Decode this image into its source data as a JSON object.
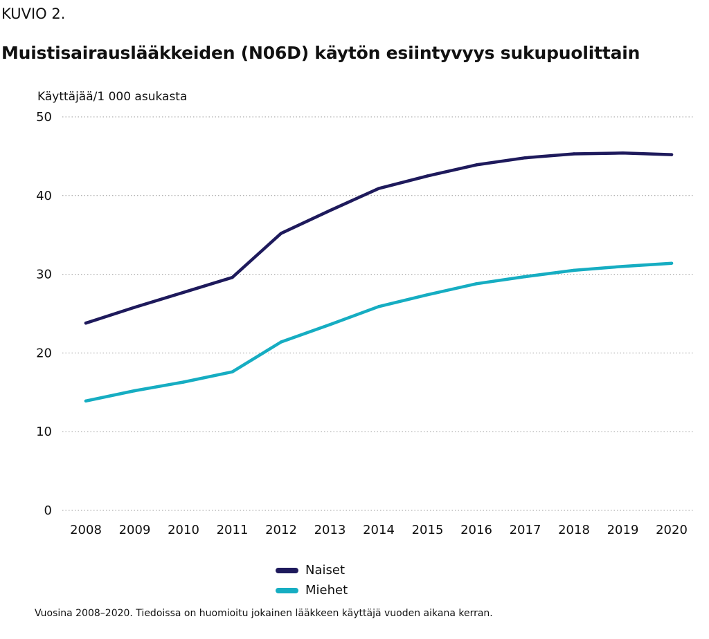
{
  "figure_label": "KUVIO 2.",
  "title": "Muistisairauslääkkeiden (N06D) käytön esiintyvyys sukupuolittain",
  "footnote": "Vuosina 2008–2020. Tiedoissa on huomioitu jokainen lääkkeen käyttäjä vuoden aikana kerran.",
  "chart_data": {
    "type": "line",
    "title": "Muistisairauslääkkeiden (N06D) käytön esiintyvyys sukupuolittain",
    "ylabel": "Käyttäjää/1 000 asukasta",
    "xlabel": "",
    "x": [
      "2008",
      "2009",
      "2010",
      "2011",
      "2012",
      "2013",
      "2014",
      "2015",
      "2016",
      "2017",
      "2018",
      "2019",
      "2020"
    ],
    "ylim": [
      0,
      50
    ],
    "yticks": [
      0,
      10,
      20,
      30,
      40,
      50
    ],
    "grid": "horizontal dotted",
    "legend_position": "bottom-center",
    "series": [
      {
        "name": "Naiset",
        "color": "#1e1a5c",
        "values": [
          23.8,
          25.8,
          27.7,
          29.6,
          35.2,
          38.1,
          40.9,
          42.5,
          43.9,
          44.8,
          45.3,
          45.4,
          45.2
        ]
      },
      {
        "name": "Miehet",
        "color": "#16adc2",
        "values": [
          13.9,
          15.2,
          16.3,
          17.6,
          21.4,
          23.6,
          25.9,
          27.4,
          28.8,
          29.7,
          30.5,
          31.0,
          31.4
        ]
      }
    ]
  }
}
